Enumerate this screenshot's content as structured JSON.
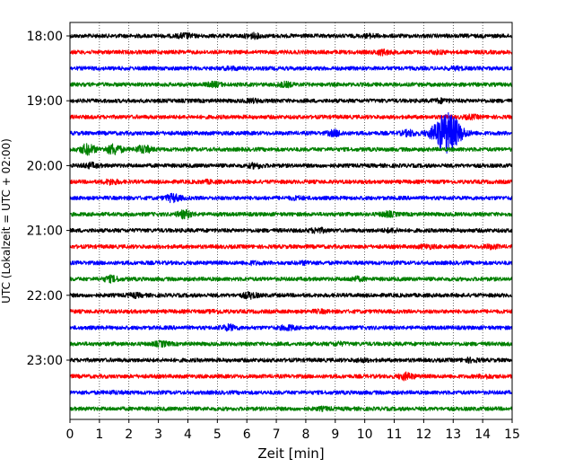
{
  "chart_data": {
    "type": "line",
    "title": "",
    "xlabel": "Zeit  [min]",
    "ylabel": "UTC (Lokalzeit = UTC + 02:00)",
    "xlim": [
      0,
      15
    ],
    "xticks": [
      0,
      1,
      2,
      3,
      4,
      5,
      6,
      7,
      8,
      9,
      10,
      11,
      12,
      13,
      14,
      15
    ],
    "ytick_labels": [
      "18:00",
      "19:00",
      "20:00",
      "21:00",
      "22:00",
      "23:00"
    ],
    "trace_interval_min": 15,
    "grid": "vertical dotted at each minute",
    "colors": [
      "#000000",
      "#ff0000",
      "#0000ff",
      "#008000"
    ],
    "traces": [
      {
        "start": "18:00",
        "color": "#000000",
        "bursts": [
          {
            "t": 3.9,
            "amp": 2
          },
          {
            "t": 6.2,
            "amp": 2
          },
          {
            "t": 10.2,
            "amp": 1.2
          }
        ]
      },
      {
        "start": "18:15",
        "color": "#ff0000",
        "bursts": [
          {
            "t": 10.6,
            "amp": 2
          },
          {
            "t": 12.5,
            "amp": 1
          }
        ]
      },
      {
        "start": "18:30",
        "color": "#0000ff",
        "bursts": [
          {
            "t": 5.5,
            "amp": 1
          },
          {
            "t": 13.1,
            "amp": 1
          }
        ]
      },
      {
        "start": "18:45",
        "color": "#008000",
        "bursts": [
          {
            "t": 4.9,
            "amp": 1.8
          },
          {
            "t": 7.3,
            "amp": 1.8
          }
        ]
      },
      {
        "start": "19:00",
        "color": "#000000",
        "bursts": [
          {
            "t": 6.2,
            "amp": 1.2
          },
          {
            "t": 12.6,
            "amp": 1.5
          }
        ]
      },
      {
        "start": "19:15",
        "color": "#ff0000",
        "bursts": [
          {
            "t": 13.6,
            "amp": 1.4
          }
        ]
      },
      {
        "start": "19:30",
        "color": "#0000ff",
        "bursts": [
          {
            "t": 9.0,
            "amp": 2.5
          },
          {
            "t": 11.5,
            "amp": 2.5
          },
          {
            "t": 12.8,
            "amp": 22
          }
        ]
      },
      {
        "start": "19:45",
        "color": "#008000",
        "bursts": [
          {
            "t": 0.6,
            "amp": 5
          },
          {
            "t": 1.5,
            "amp": 5
          },
          {
            "t": 2.5,
            "amp": 3.5
          }
        ]
      },
      {
        "start": "20:00",
        "color": "#000000",
        "bursts": [
          {
            "t": 0.7,
            "amp": 2
          },
          {
            "t": 6.3,
            "amp": 2
          }
        ]
      },
      {
        "start": "20:15",
        "color": "#ff0000",
        "bursts": [
          {
            "t": 1.4,
            "amp": 2
          },
          {
            "t": 4.7,
            "amp": 1
          }
        ]
      },
      {
        "start": "20:30",
        "color": "#0000ff",
        "bursts": [
          {
            "t": 3.5,
            "amp": 3.5
          },
          {
            "t": 7.7,
            "amp": 1
          }
        ]
      },
      {
        "start": "20:45",
        "color": "#008000",
        "bursts": [
          {
            "t": 3.9,
            "amp": 3.5
          },
          {
            "t": 10.8,
            "amp": 2
          }
        ]
      },
      {
        "start": "21:00",
        "color": "#000000",
        "bursts": [
          {
            "t": 8.4,
            "amp": 2
          },
          {
            "t": 10.9,
            "amp": 1.2
          }
        ]
      },
      {
        "start": "21:15",
        "color": "#ff0000",
        "bursts": [
          {
            "t": 12.1,
            "amp": 1.5
          },
          {
            "t": 14.3,
            "amp": 1.5
          }
        ]
      },
      {
        "start": "21:30",
        "color": "#0000ff",
        "bursts": [
          {
            "t": 6.2,
            "amp": 1
          },
          {
            "t": 8.0,
            "amp": 1
          }
        ]
      },
      {
        "start": "21:45",
        "color": "#008000",
        "bursts": [
          {
            "t": 1.4,
            "amp": 2.5
          },
          {
            "t": 9.7,
            "amp": 1.5
          }
        ]
      },
      {
        "start": "22:00",
        "color": "#000000",
        "bursts": [
          {
            "t": 2.2,
            "amp": 1.5
          },
          {
            "t": 6.1,
            "amp": 2.5
          }
        ]
      },
      {
        "start": "22:15",
        "color": "#ff0000",
        "bursts": [
          {
            "t": 5.0,
            "amp": 1
          },
          {
            "t": 8.5,
            "amp": 1
          }
        ]
      },
      {
        "start": "22:30",
        "color": "#0000ff",
        "bursts": [
          {
            "t": 5.4,
            "amp": 2.5
          },
          {
            "t": 7.4,
            "amp": 2
          }
        ]
      },
      {
        "start": "22:45",
        "color": "#008000",
        "bursts": [
          {
            "t": 3.1,
            "amp": 2
          },
          {
            "t": 9.1,
            "amp": 1
          }
        ]
      },
      {
        "start": "23:00",
        "color": "#000000",
        "bursts": [
          {
            "t": 13.6,
            "amp": 1.5
          },
          {
            "t": 9.9,
            "amp": 1
          }
        ]
      },
      {
        "start": "23:15",
        "color": "#ff0000",
        "bursts": [
          {
            "t": 11.4,
            "amp": 3
          },
          {
            "t": 14.1,
            "amp": 1.2
          }
        ]
      },
      {
        "start": "23:30",
        "color": "#0000ff",
        "bursts": [
          {
            "t": 1.5,
            "amp": 0.6
          }
        ]
      },
      {
        "start": "23:45",
        "color": "#008000",
        "bursts": [
          {
            "t": 8.6,
            "amp": 1
          }
        ]
      }
    ]
  }
}
